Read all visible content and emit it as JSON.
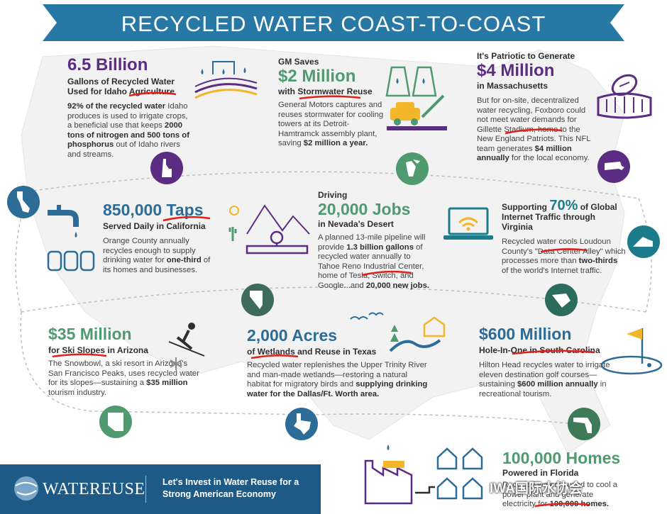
{
  "banner": {
    "title": "RECYCLED WATER COAST-TO-COAST",
    "color": "#2878a6"
  },
  "colors": {
    "blue": "#2c6c97",
    "purple": "#5a2d82",
    "green": "#4f9a6e",
    "teal": "#1c7c8c",
    "yellow": "#f3b52a",
    "red_underline": "#e0201a"
  },
  "idaho": {
    "amount": "6.5 Billion",
    "subtitle": "Gallons of Recycled Water Used for Idaho Agriculture",
    "body_lead": "92% of the recycled water",
    "body_1": "Idaho produces is used to irrigate crops, a beneficial use that keeps",
    "body_bold": "2000 tons of nitrogen and 500 tons of phosphorus",
    "body_2": "out of Idaho rivers and streams."
  },
  "michigan": {
    "pre": "GM Saves",
    "amount": "$2 Million",
    "subtitle": "with Stormwater Reuse",
    "body_1": "General Motors captures and reuses stormwater for cooling towers at its Detroit-Hamtramck assembly plant, saving",
    "body_bold": "$2 million a year."
  },
  "massachusetts": {
    "pre": "It's Patriotic to Generate",
    "amount": "$4 Million",
    "subtitle": "in Massachusetts",
    "body_1": "But for on-site, decentralized water recycling, Foxboro could not meet water demands for Gillette Stadium, home to the New England Patriots. This NFL team generates",
    "body_bold": "$4 million annually",
    "body_2": "for the local economy."
  },
  "california": {
    "amount": "850,000 Taps",
    "subtitle": "Served Daily in California",
    "body_1": "Orange County annually recycles enough to supply drinking water for",
    "body_bold": "one-third",
    "body_2": "of its homes and businesses."
  },
  "nevada": {
    "pre": "Driving",
    "amount": "20,000 Jobs",
    "subtitle": "in Nevada's Desert",
    "body_1": "A planned 13-mile pipeline will provide",
    "body_bold": "1.3 billion gallons",
    "body_2": "of recycled water annually to Tahoe Reno Industrial Center, home of Tesla, Switch, and Google...and",
    "body_bold2": "20,000 new jobs."
  },
  "virginia": {
    "pre": "Supporting",
    "amount": "70%",
    "post": "of Global",
    "subtitle": "Internet Traffic through Virginia",
    "body_1": "Recycled water cools Loudoun County's \"Data Center Alley\" which processes more than",
    "body_bold": "two-thirds",
    "body_2": "of the world's Internet traffic."
  },
  "arizona": {
    "amount": "$35 Million",
    "subtitle": "for Ski Slopes in Arizona",
    "body_1": "The Snowbowl, a ski resort in Arizona's San Francisco Peaks, uses recycled water for its slopes—sustaining a",
    "body_bold": "$35 million",
    "body_2": "tourism industry."
  },
  "texas": {
    "amount": "2,000 Acres",
    "subtitle": "of Wetlands and Reuse in Texas",
    "body_1": "Recycled water replenishes the Upper Trinity River and man-made wetlands—restoring a natural habitat for migratory birds and",
    "body_bold": "supplying drinking water for the Dallas/Ft. Worth area."
  },
  "south_carolina": {
    "amount": "$600 Million",
    "subtitle": "Hole-In-One in South Carolina",
    "body_1": "Hilton Head recycles water to irrigate eleven destination golf courses—sustaining",
    "body_bold": "$600 million annually",
    "body_2": "in recreational tourism."
  },
  "florida": {
    "amount": "100,000 Homes",
    "subtitle": "Powered in Florida",
    "body_1": "Recycled water is used to cool a power plant and generate electricity for",
    "body_bold": "100,000 homes."
  },
  "footer": {
    "logo": "WATEREUSE",
    "tagline": "Let's Invest in Water Reuse for a Strong American Economy",
    "watermark": "IWA国际水协会"
  }
}
